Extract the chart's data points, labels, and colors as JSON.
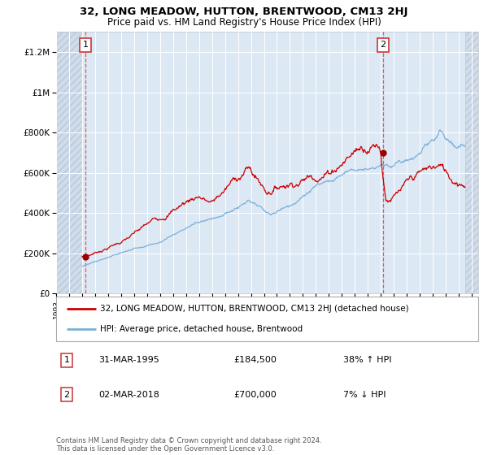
{
  "title": "32, LONG MEADOW, HUTTON, BRENTWOOD, CM13 2HJ",
  "subtitle": "Price paid vs. HM Land Registry's House Price Index (HPI)",
  "legend_line1": "32, LONG MEADOW, HUTTON, BRENTWOOD, CM13 2HJ (detached house)",
  "legend_line2": "HPI: Average price, detached house, Brentwood",
  "annotation1_date": "31-MAR-1995",
  "annotation1_price": "£184,500",
  "annotation1_hpi": "38% ↑ HPI",
  "annotation2_date": "02-MAR-2018",
  "annotation2_price": "£700,000",
  "annotation2_hpi": "7% ↓ HPI",
  "footer": "Contains HM Land Registry data © Crown copyright and database right 2024.\nThis data is licensed under the Open Government Licence v3.0.",
  "plot_bg_color": "#dde8f5",
  "hatch_bg_color": "#d0dcea",
  "grid_color": "#ffffff",
  "red_line_color": "#cc0000",
  "blue_line_color": "#7ab0d8",
  "point_color": "#990000",
  "dashed_line_color": "#dd4444",
  "ylim": [
    0,
    1300000
  ],
  "yticks": [
    0,
    200000,
    400000,
    600000,
    800000,
    1000000,
    1200000
  ],
  "ytick_labels": [
    "£0",
    "£200K",
    "£400K",
    "£600K",
    "£800K",
    "£1M",
    "£1.2M"
  ],
  "sale1_x": 1995.25,
  "sale1_y": 184500,
  "sale2_x": 2018.17,
  "sale2_y": 700000,
  "xmin": 1993.0,
  "xmax": 2025.5,
  "data_xstart": 1995.0,
  "data_xend": 2024.5
}
